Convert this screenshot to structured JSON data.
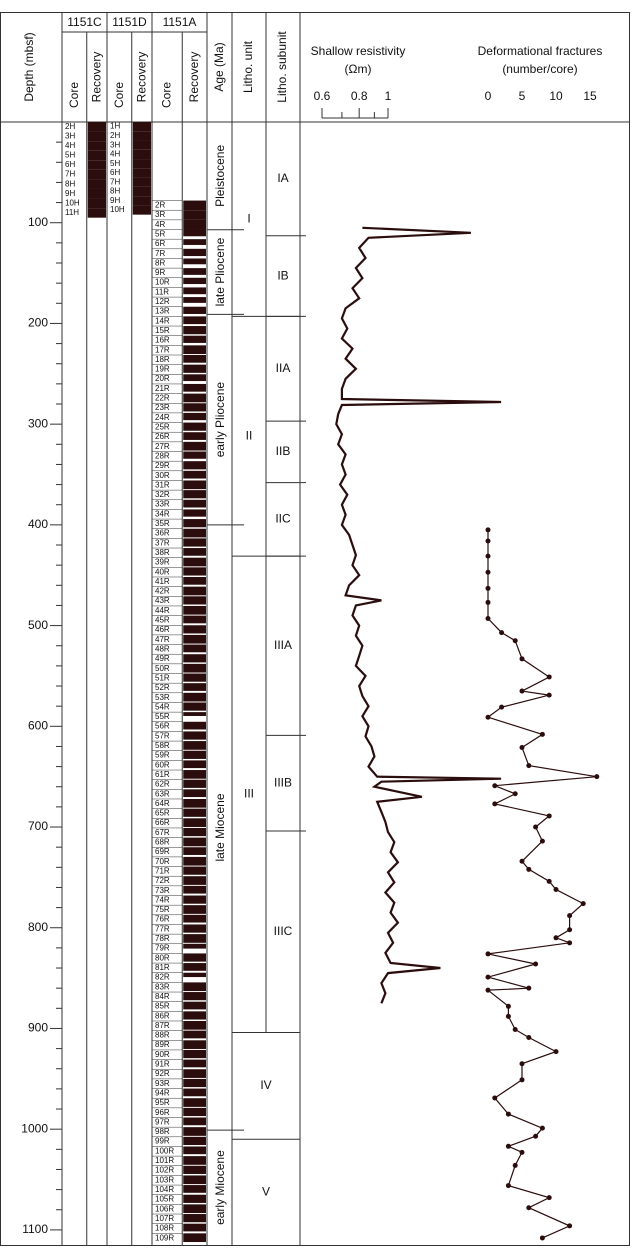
{
  "chart_data": {
    "type": "well-log",
    "depth_label": "Depth (mbsf)",
    "ylim": [
      0,
      1115
    ],
    "yticks": [
      100,
      200,
      300,
      400,
      500,
      600,
      700,
      800,
      900,
      1000,
      1100
    ],
    "yminor_ticks": [
      20,
      40,
      60,
      80,
      120,
      140,
      160,
      180,
      220,
      240,
      260,
      280,
      320,
      340,
      360,
      380,
      420,
      440,
      460,
      480,
      520,
      540,
      560,
      580,
      620,
      640,
      660,
      680,
      720,
      740,
      760,
      780,
      820,
      840,
      860,
      880,
      920,
      940,
      960,
      980,
      1020,
      1040,
      1060,
      1080
    ],
    "holes": [
      {
        "name": "1151C",
        "core_label": "Core",
        "recovery_label": "Recovery",
        "top": 0,
        "bottom": 95,
        "cores": [
          "2H",
          "3H",
          "4H",
          "5H",
          "6H",
          "7H",
          "8H",
          "9H",
          "10H",
          "11H"
        ],
        "recovery": [
          100,
          100,
          100,
          100,
          100,
          100,
          100,
          100,
          100,
          100
        ]
      },
      {
        "name": "1151D",
        "core_label": "Core",
        "recovery_label": "Recovery",
        "top": 0,
        "bottom": 92,
        "cores": [
          "1H",
          "2H",
          "3H",
          "4H",
          "5H",
          "6H",
          "7H",
          "8H",
          "9H",
          "10H"
        ],
        "recovery": [
          100,
          100,
          100,
          100,
          100,
          100,
          100,
          100,
          100,
          100
        ]
      },
      {
        "name": "1151A",
        "core_label": "Core",
        "recovery_label": "Recovery",
        "top": 78,
        "bottom": 1113,
        "cores": [
          "2R",
          "3R",
          "4R",
          "5R",
          "6R",
          "7R",
          "8R",
          "9R",
          "10R",
          "11R",
          "12R",
          "13R",
          "14R",
          "15R",
          "16R",
          "17R",
          "18R",
          "19R",
          "20R",
          "21R",
          "22R",
          "23R",
          "24R",
          "25R",
          "26R",
          "27R",
          "28R",
          "29R",
          "30R",
          "31R",
          "32R",
          "33R",
          "34R",
          "35R",
          "36R",
          "37R",
          "38R",
          "39R",
          "40R",
          "41R",
          "42R",
          "43R",
          "44R",
          "45R",
          "46R",
          "47R",
          "48R",
          "49R",
          "50R",
          "51R",
          "52R",
          "53R",
          "54R",
          "55R",
          "56R",
          "57R",
          "58R",
          "59R",
          "60R",
          "61R",
          "62R",
          "63R",
          "64R",
          "65R",
          "66R",
          "67R",
          "68R",
          "69R",
          "70R",
          "71R",
          "72R",
          "73R",
          "74R",
          "75R",
          "76R",
          "77R",
          "78R",
          "79R",
          "80R",
          "81R",
          "82R",
          "83R",
          "84R",
          "85R",
          "86R",
          "87R",
          "88R",
          "89R",
          "90R",
          "91R",
          "92R",
          "93R",
          "94R",
          "95R",
          "96R",
          "97R",
          "98R",
          "99R",
          "100R",
          "101R",
          "102R",
          "103R",
          "104R",
          "105R",
          "106R",
          "107R",
          "108R",
          "109R"
        ],
        "recovery": [
          100,
          100,
          100,
          70,
          60,
          75,
          60,
          70,
          65,
          70,
          60,
          75,
          80,
          85,
          75,
          90,
          80,
          85,
          70,
          80,
          90,
          85,
          75,
          85,
          80,
          90,
          75,
          85,
          80,
          90,
          85,
          80,
          75,
          85,
          90,
          85,
          80,
          90,
          85,
          80,
          90,
          85,
          90,
          80,
          85,
          90,
          80,
          85,
          90,
          85,
          80,
          90,
          85,
          40,
          80,
          85,
          90,
          85,
          80,
          90,
          85,
          80,
          90,
          85,
          90,
          85,
          90,
          80,
          90,
          85,
          90,
          80,
          85,
          90,
          80,
          85,
          90,
          50,
          85,
          80,
          45,
          90,
          85,
          80,
          85,
          90,
          80,
          90,
          85,
          80,
          90,
          85,
          80,
          90,
          85,
          80,
          90,
          85,
          80,
          90,
          85,
          90,
          80,
          85,
          90,
          85,
          80,
          90
        ]
      }
    ],
    "age": {
      "label": "Age (Ma)",
      "names": [
        "Pleistocene",
        "late Pliocene",
        "early Pliocene",
        "late Miocene",
        "early Miocene"
      ],
      "tops": [
        0,
        107,
        191,
        400,
        1001
      ]
    },
    "units": {
      "label": "Litho. unit",
      "names": [
        "I",
        "II",
        "III",
        "IV",
        "V"
      ],
      "tops": [
        0,
        193,
        431,
        904,
        1010
      ],
      "span_both": [
        false,
        false,
        false,
        true,
        true
      ]
    },
    "subunits": {
      "label": "Litho. subunit",
      "names": [
        "IA",
        "IB",
        "IIA",
        "IIB",
        "IIC",
        "IIIA",
        "IIIB",
        "IIIC"
      ],
      "tops": [
        0,
        113,
        193,
        297,
        358,
        431,
        609,
        704
      ],
      "end": 904
    },
    "resistivity": {
      "title": "Shallow resistivity",
      "unit": "(Ωm)",
      "log": true,
      "xlim": [
        0.6,
        1
      ],
      "xticks": [
        0.6,
        0.8,
        1
      ],
      "xminor_ticks": [
        0.7,
        0.9
      ],
      "color": "#2b0d0d",
      "depth": [
        105,
        110,
        115,
        125,
        135,
        145,
        155,
        165,
        175,
        185,
        195,
        205,
        215,
        225,
        235,
        245,
        255,
        265,
        275,
        278,
        281,
        290,
        300,
        310,
        320,
        330,
        340,
        350,
        360,
        370,
        380,
        390,
        400,
        410,
        420,
        430,
        440,
        450,
        460,
        470,
        475,
        480,
        490,
        500,
        510,
        520,
        530,
        540,
        550,
        560,
        570,
        580,
        590,
        600,
        610,
        620,
        630,
        640,
        650,
        652,
        655,
        660,
        670,
        675,
        685,
        695,
        705,
        715,
        725,
        735,
        745,
        755,
        765,
        775,
        785,
        795,
        805,
        815,
        825,
        835,
        840,
        845,
        855,
        865,
        875
      ],
      "values": [
        0.82,
        1.9,
        0.86,
        0.8,
        0.84,
        0.78,
        0.82,
        0.76,
        0.8,
        0.72,
        0.7,
        0.73,
        0.7,
        0.76,
        0.72,
        0.78,
        0.72,
        0.7,
        0.7,
        2.4,
        0.7,
        0.68,
        0.67,
        0.7,
        0.68,
        0.72,
        0.7,
        0.72,
        0.69,
        0.73,
        0.7,
        0.72,
        0.7,
        0.74,
        0.76,
        0.78,
        0.76,
        0.8,
        0.74,
        0.72,
        0.95,
        0.78,
        0.76,
        0.8,
        0.78,
        0.82,
        0.8,
        0.78,
        0.84,
        0.8,
        0.82,
        0.86,
        0.82,
        0.86,
        0.84,
        0.88,
        0.9,
        0.86,
        0.92,
        2.4,
        0.95,
        0.9,
        1.3,
        0.92,
        0.95,
        0.98,
        1.0,
        1.05,
        1.02,
        1.08,
        1.0,
        1.05,
        0.98,
        1.05,
        1.02,
        1.08,
        1.0,
        1.04,
        0.98,
        1.02,
        1.5,
        1.0,
        0.95,
        0.98,
        0.95
      ]
    },
    "fractures": {
      "title": "Deformational fractures",
      "unit": "(number/core)",
      "xlim": [
        0,
        15
      ],
      "xticks": [
        0,
        5,
        10,
        15
      ],
      "color": "#2b0d0d",
      "depth": [
        405,
        416,
        431,
        447,
        463,
        477,
        493,
        507,
        515,
        533,
        551,
        565,
        569,
        581,
        591,
        608,
        621,
        639,
        650,
        659,
        667,
        677,
        689,
        700,
        714,
        734,
        742,
        754,
        762,
        776,
        788,
        802,
        810,
        815,
        826,
        836,
        849,
        860,
        862,
        878,
        888,
        901,
        909,
        923,
        935,
        951,
        969,
        985,
        999,
        1007,
        1017,
        1023,
        1036,
        1056,
        1068,
        1078,
        1096,
        1108
      ],
      "values": [
        0,
        0,
        0,
        0,
        0,
        0,
        0,
        2,
        4,
        5,
        9,
        5,
        9,
        2,
        0,
        8,
        5,
        6,
        16,
        1,
        4,
        1,
        9,
        7,
        8,
        5,
        6,
        9,
        10,
        14,
        12,
        12,
        10,
        12,
        0,
        7,
        0,
        6,
        0,
        3,
        3,
        4,
        6,
        10,
        5,
        5,
        1,
        3,
        8,
        7,
        3,
        5,
        4,
        3,
        9,
        6,
        12,
        8
      ]
    }
  }
}
